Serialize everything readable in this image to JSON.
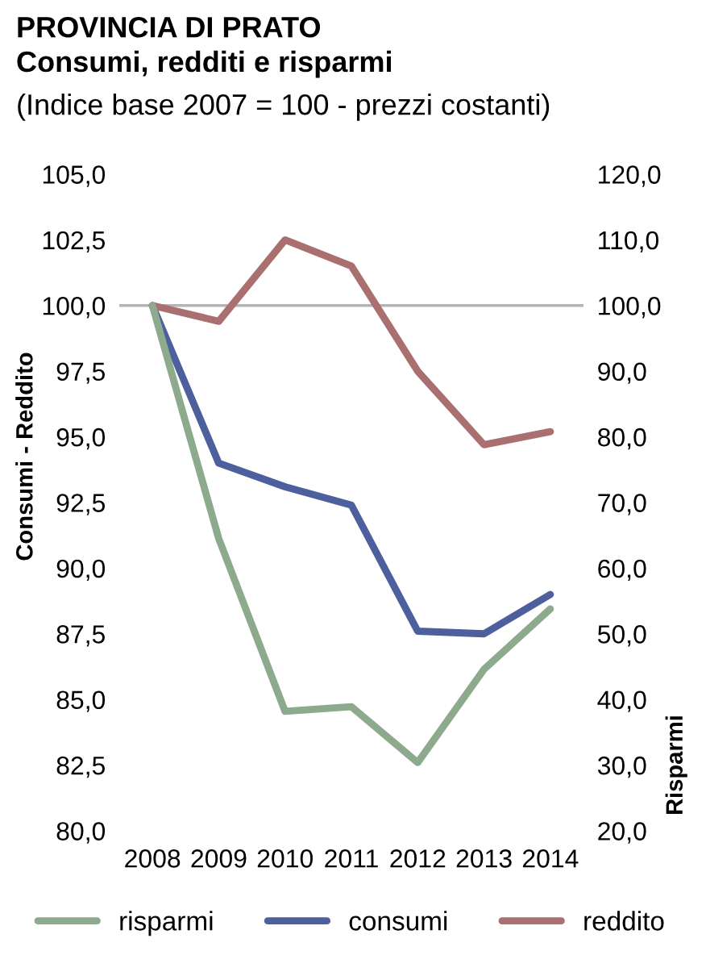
{
  "chart_data": {
    "type": "line",
    "title": "PROVINCIA DI PRATO\nConsumi, redditi e risparmi",
    "subtitle": "(Indice base 2007 = 100 - prezzi costanti)",
    "ylabel": "Consumi - Reddito",
    "y2label": "Risparmi",
    "categories": [
      "2008",
      "2009",
      "2010",
      "2011",
      "2012",
      "2013",
      "2014"
    ],
    "series": [
      {
        "name": "risparmi",
        "color": "#8dab8c",
        "axis": "y2",
        "values": [
          100.0,
          64.5,
          38.2,
          38.9,
          30.4,
          44.6,
          53.8
        ]
      },
      {
        "name": "consumi",
        "color": "#4d5f9c",
        "values": [
          100.0,
          94.0,
          93.1,
          92.4,
          87.6,
          87.5,
          89.0
        ]
      },
      {
        "name": "reddito",
        "color": "#a9706f",
        "values": [
          100.0,
          99.4,
          102.5,
          101.5,
          97.5,
          94.7,
          95.2
        ]
      }
    ],
    "ylim": [
      80,
      105
    ],
    "yticks": [
      {
        "value": 80,
        "label": "80,0"
      },
      {
        "value": 82.5,
        "label": "82,5"
      },
      {
        "value": 85,
        "label": "85,0"
      },
      {
        "value": 87.5,
        "label": "87,5"
      },
      {
        "value": 90,
        "label": "90,0"
      },
      {
        "value": 92.5,
        "label": "92,5"
      },
      {
        "value": 95,
        "label": "95,0"
      },
      {
        "value": 97.5,
        "label": "97,5"
      },
      {
        "value": 100,
        "label": "100,0"
      },
      {
        "value": 102.5,
        "label": "102,5"
      },
      {
        "value": 105,
        "label": "105,0"
      }
    ],
    "y2lim": [
      20,
      120
    ],
    "y2ticks": [
      {
        "value": 20,
        "label": "20,0"
      },
      {
        "value": 30,
        "label": "30,0"
      },
      {
        "value": 40,
        "label": "40,0"
      },
      {
        "value": 50,
        "label": "50,0"
      },
      {
        "value": 60,
        "label": "60,0"
      },
      {
        "value": 70,
        "label": "70,0"
      },
      {
        "value": 80,
        "label": "80,0"
      },
      {
        "value": 90,
        "label": "90,0"
      },
      {
        "value": 100,
        "label": "100,0"
      },
      {
        "value": 110,
        "label": "110,0"
      },
      {
        "value": 120,
        "label": "120,0"
      }
    ],
    "ref_lines": [
      {
        "axis": "y",
        "value": 100,
        "color": "#b4b4b4"
      }
    ],
    "legend": "bottom"
  }
}
